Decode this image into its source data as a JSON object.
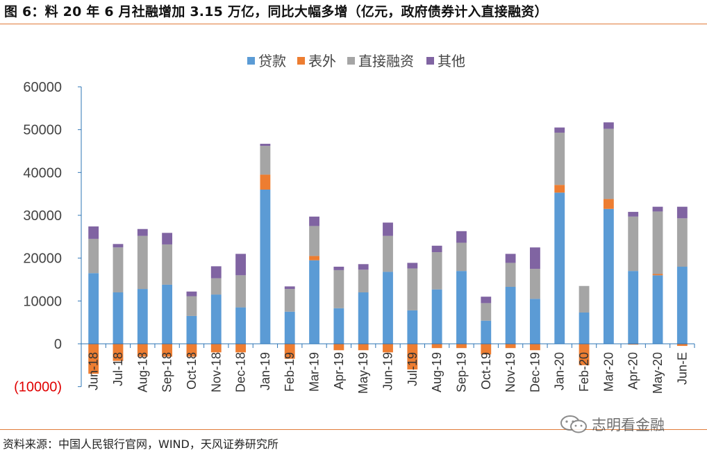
{
  "title": "图 6：料 20 年 6 月社融增加 3.15 万亿，同比大幅多增（亿元，政府债券计入直接融资）",
  "source": "资料来源：中国人民银行官网，WIND，天风证券研究所",
  "watermark": "志明看金融",
  "colors": {
    "accent_rule": "#e07b39",
    "loans": "#5b9bd5",
    "offbalance": "#ed7d31",
    "direct": "#a5a5a5",
    "other": "#8064a2"
  },
  "chart_data": {
    "type": "bar",
    "stacked": true,
    "categories": [
      "Jun-18",
      "Jul-18",
      "Aug-18",
      "Sep-18",
      "Oct-18",
      "Nov-18",
      "Dec-18",
      "Jan-19",
      "Feb-19",
      "Mar-19",
      "Apr-19",
      "May-19",
      "Jun-19",
      "Jul-19",
      "Aug-19",
      "Sep-19",
      "Oct-19",
      "Nov-19",
      "Dec-19",
      "Jan-20",
      "Feb-20",
      "Mar-20",
      "Apr-20",
      "May-20",
      "Jun-E"
    ],
    "series": [
      {
        "name": "贷款",
        "color": "#5b9bd5",
        "values": [
          16500,
          12000,
          12800,
          13800,
          6500,
          11500,
          8500,
          36000,
          7500,
          19500,
          8300,
          12000,
          16800,
          7800,
          12700,
          17000,
          5400,
          13300,
          10500,
          35300,
          7300,
          31500,
          17000,
          16000,
          18000
        ]
      },
      {
        "name": "表外",
        "color": "#ed7d31",
        "values": [
          -7000,
          -4000,
          -3000,
          -3000,
          -3000,
          -2000,
          -2000,
          3500,
          -3500,
          1000,
          -1500,
          -1500,
          -2000,
          -6000,
          -1000,
          -1000,
          -2500,
          -1000,
          -1500,
          1800,
          -5000,
          2300,
          -200,
          300,
          -500
        ]
      },
      {
        "name": "直接融资",
        "color": "#a5a5a5",
        "values": [
          8000,
          10500,
          12400,
          9400,
          4600,
          3800,
          7500,
          6700,
          5300,
          7000,
          8900,
          5300,
          8400,
          9800,
          8700,
          6600,
          4100,
          5600,
          7000,
          12200,
          6200,
          16400,
          12700,
          14600,
          11300
        ]
      },
      {
        "name": "其他",
        "color": "#8064a2",
        "values": [
          2900,
          800,
          1600,
          2700,
          1100,
          2800,
          5000,
          500,
          600,
          2200,
          800,
          1300,
          3100,
          1300,
          1500,
          2700,
          1500,
          2100,
          5000,
          1200,
          0,
          1500,
          1100,
          1100,
          2700
        ]
      }
    ],
    "y_ticks": [
      "60000",
      "50000",
      "40000",
      "30000",
      "20000",
      "10000",
      "0",
      "(10000)"
    ],
    "ylim": [
      -10000,
      60000
    ],
    "legend_position": "top",
    "grid": false
  }
}
